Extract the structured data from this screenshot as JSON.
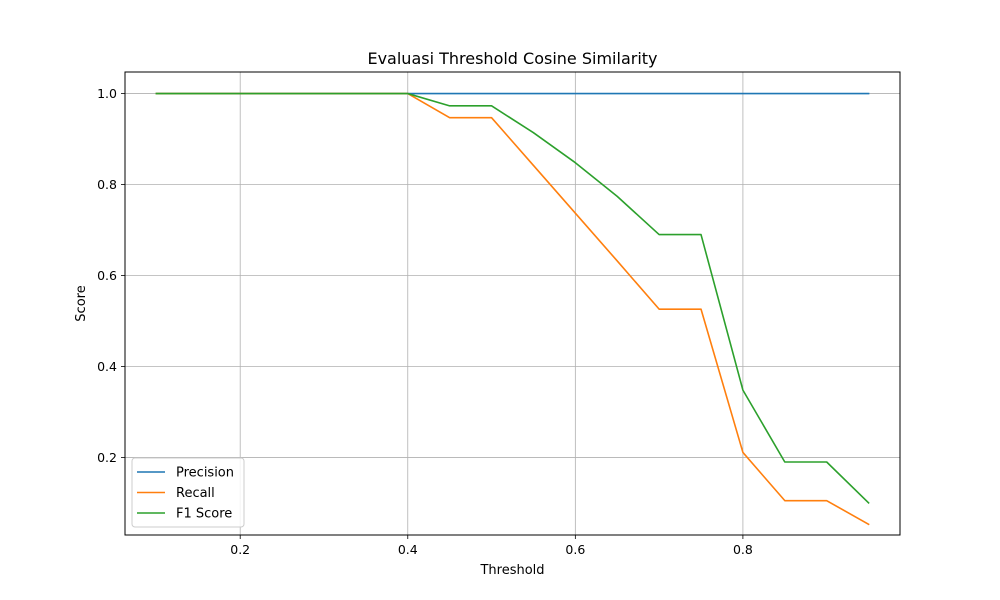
{
  "chart_data": {
    "type": "line",
    "title": "Evaluasi Threshold Cosine Similarity",
    "xlabel": "Threshold",
    "ylabel": "Score",
    "xlim": [
      0.0625,
      0.9875
    ],
    "ylim": [
      0.0295,
      1.0474
    ],
    "xticks": [
      0.2,
      0.4,
      0.6,
      0.8
    ],
    "xtick_labels": [
      "0.2",
      "0.4",
      "0.6",
      "0.8"
    ],
    "yticks": [
      0.2,
      0.4,
      0.6,
      0.8,
      1.0
    ],
    "ytick_labels": [
      "0.2",
      "0.4",
      "0.6",
      "0.8",
      "1.0"
    ],
    "grid": true,
    "legend_position": "lower-left",
    "x": [
      0.1,
      0.15,
      0.2,
      0.25,
      0.3,
      0.35,
      0.4,
      0.45,
      0.5,
      0.55,
      0.6,
      0.65,
      0.7,
      0.75,
      0.8,
      0.85,
      0.9,
      0.95
    ],
    "series": [
      {
        "name": "Precision",
        "color": "#1f77b4",
        "values": [
          1.0,
          1.0,
          1.0,
          1.0,
          1.0,
          1.0,
          1.0,
          1.0,
          1.0,
          1.0,
          1.0,
          1.0,
          1.0,
          1.0,
          1.0,
          1.0,
          1.0,
          1.0
        ]
      },
      {
        "name": "Recall",
        "color": "#ff7f0e",
        "values": [
          1.0,
          1.0,
          1.0,
          1.0,
          1.0,
          1.0,
          1.0,
          0.947,
          0.947,
          0.842,
          0.737,
          0.632,
          0.526,
          0.526,
          0.211,
          0.105,
          0.105,
          0.053
        ]
      },
      {
        "name": "F1 Score",
        "color": "#2ca02c",
        "values": [
          1.0,
          1.0,
          1.0,
          1.0,
          1.0,
          1.0,
          1.0,
          0.973,
          0.973,
          0.914,
          0.848,
          0.774,
          0.69,
          0.69,
          0.348,
          0.19,
          0.19,
          0.1
        ]
      }
    ]
  }
}
